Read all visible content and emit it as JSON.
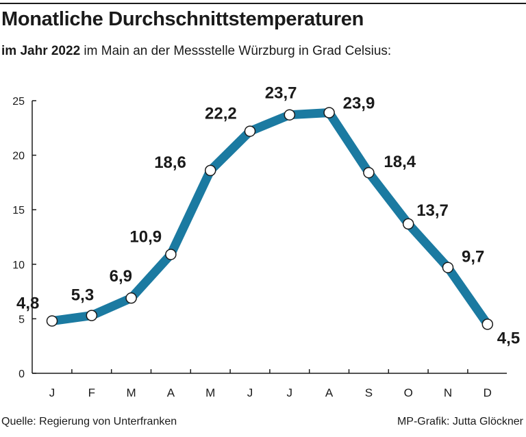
{
  "header": {
    "title": "Monatliche Durchschnittstemperaturen",
    "subtitle_bold": "im Jahr 2022",
    "subtitle_rest": " im Main an der Messstelle Würzburg in Grad Celsius:"
  },
  "footer": {
    "source": "Quelle: Regierung von Unterfranken",
    "credit": "MP-Grafik: Jutta Glöckner"
  },
  "chart_data": {
    "type": "line",
    "categories": [
      "J",
      "F",
      "M",
      "A",
      "M",
      "J",
      "J",
      "A",
      "S",
      "O",
      "N",
      "D"
    ],
    "values": [
      4.8,
      5.3,
      6.9,
      10.9,
      18.6,
      22.2,
      23.7,
      23.9,
      18.4,
      13.7,
      9.7,
      4.5
    ],
    "value_labels": [
      "4,8",
      "5,3",
      "6,9",
      "10,9",
      "18,6",
      "22,2",
      "23,7",
      "23,9",
      "18,4",
      "13,7",
      "9,7",
      "4,5"
    ],
    "y_ticks": [
      0,
      5,
      10,
      15,
      20,
      25
    ],
    "ylim": [
      0,
      25
    ],
    "grid": false,
    "colors": {
      "line": "#1b7aa1",
      "marker_fill": "#ffffff",
      "axis": "#1a1a1a",
      "text": "#1a1a1a"
    }
  }
}
